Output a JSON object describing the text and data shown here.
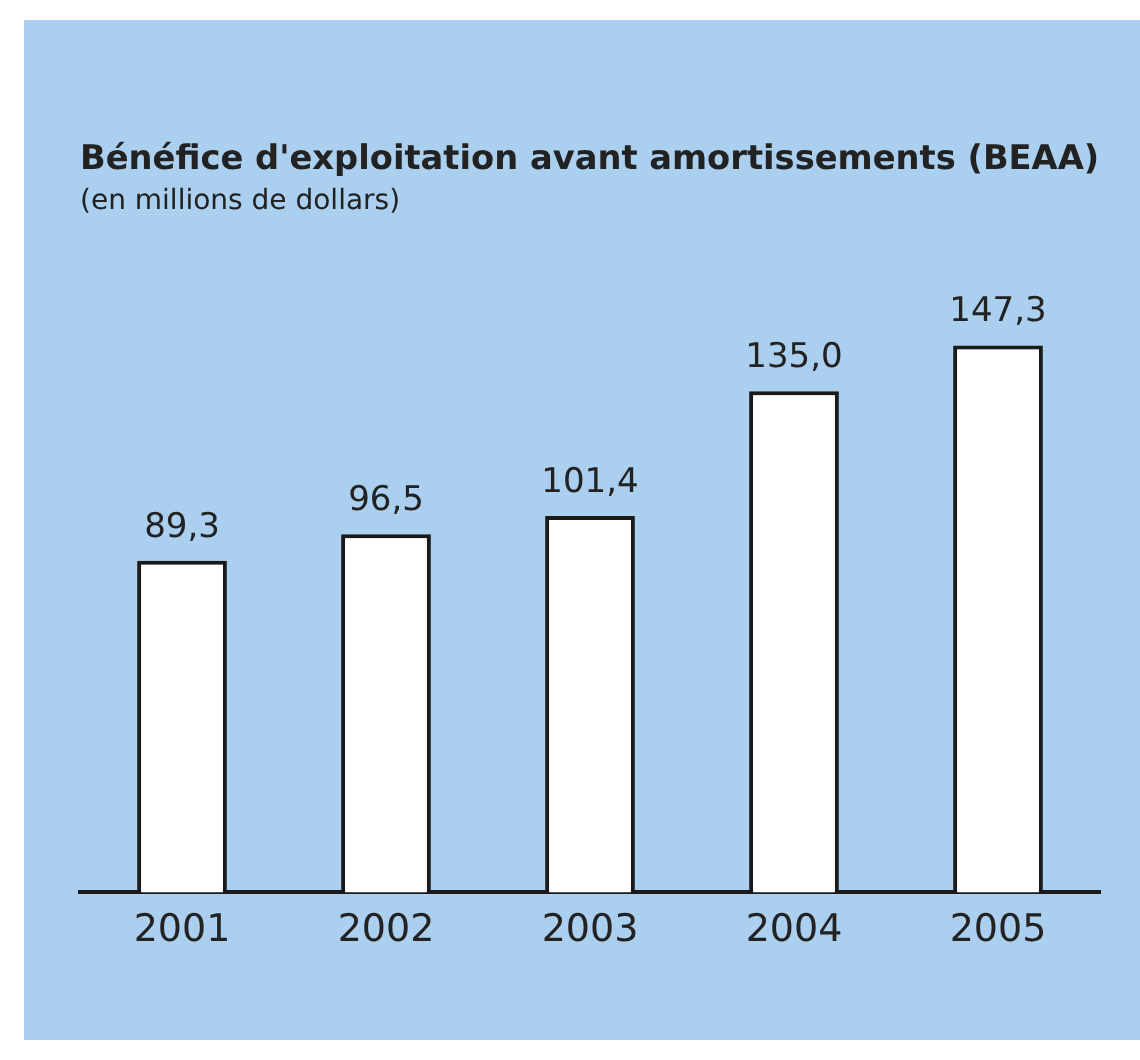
{
  "chart_data": {
    "type": "bar",
    "title": "Bénéfice d'exploitation avant amortissements (BEAA)",
    "subtitle": "(en millions de dollars)",
    "categories": [
      "2001",
      "2002",
      "2003",
      "2004",
      "2005"
    ],
    "values": [
      89.3,
      96.5,
      101.4,
      135.0,
      147.3
    ],
    "value_labels": [
      "89,3",
      "96,5",
      "101,4",
      "135,0",
      "147,3"
    ],
    "color": "#ffffff"
  }
}
